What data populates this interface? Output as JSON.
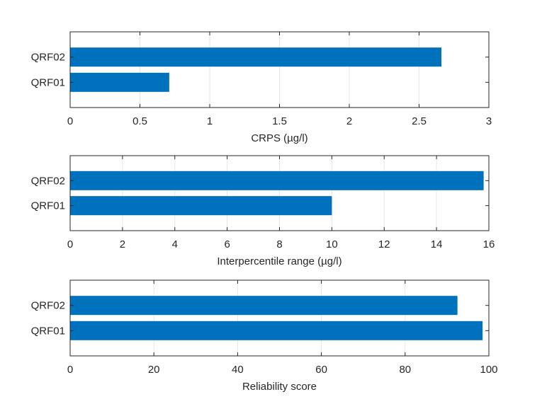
{
  "chart_data": [
    {
      "type": "bar",
      "orientation": "horizontal",
      "categories": [
        "QRF01",
        "QRF02"
      ],
      "values": [
        0.71,
        2.66
      ],
      "xlabel": "CRPS (µg/l)",
      "xlim": [
        0,
        3
      ],
      "xticks": [
        "0",
        "0.5",
        "1",
        "1.5",
        "2",
        "2.5",
        "3"
      ],
      "grid": true,
      "color": "#0072BD"
    },
    {
      "type": "bar",
      "orientation": "horizontal",
      "categories": [
        "QRF01",
        "QRF02"
      ],
      "values": [
        10.0,
        15.8
      ],
      "xlabel": "Interpercentile range (µg/l)",
      "xlim": [
        0,
        16
      ],
      "xticks": [
        "0",
        "2",
        "4",
        "6",
        "8",
        "10",
        "12",
        "14",
        "16"
      ],
      "grid": true,
      "color": "#0072BD"
    },
    {
      "type": "bar",
      "orientation": "horizontal",
      "categories": [
        "QRF01",
        "QRF02"
      ],
      "values": [
        98.5,
        92.5
      ],
      "xlabel": "Reliability score",
      "xlim": [
        0,
        100
      ],
      "xticks": [
        "0",
        "20",
        "40",
        "60",
        "80",
        "100"
      ],
      "grid": true,
      "color": "#0072BD"
    }
  ]
}
